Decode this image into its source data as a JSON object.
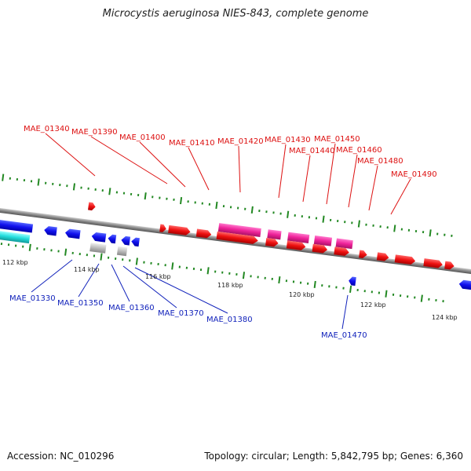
{
  "title": "Microcystis aeruginosa NIES-843, complete genome",
  "accession_text": "Accession: NC_010296",
  "topology_text": "Topology: circular; Length: 5,842,795 bp; Genes: 6,360",
  "colors": {
    "backbone": "#888888",
    "forward_gene": "#ee1111",
    "forward_rna": "#ee2299",
    "reverse_gene": "#1111ee",
    "reverse_other": "#22dddd",
    "pseudo_gene": "#bbbbbb",
    "tick": "#228822",
    "label_top": "#dd1111",
    "label_bottom": "#1122bb"
  },
  "scale": {
    "unit": "kbp",
    "labels": [
      "112 kbp",
      "114 kbp",
      "116 kbp",
      "118 kbp",
      "120 kbp",
      "122 kbp",
      "124 kbp"
    ]
  },
  "top_labels": [
    "MAE_01340",
    "MAE_01390",
    "MAE_01400",
    "MAE_01410",
    "MAE_01420",
    "MAE_01430",
    "MAE_01440",
    "MAE_01450",
    "MAE_01460",
    "MAE_01480",
    "MAE_01490"
  ],
  "bottom_labels": [
    "MAE_01330",
    "MAE_01350",
    "MAE_01360",
    "MAE_01370",
    "MAE_01380",
    "MAE_01470"
  ]
}
